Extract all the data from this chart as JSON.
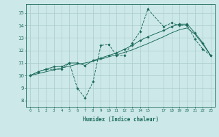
{
  "bg_color": "#cde8e8",
  "grid_color": "#aacccc",
  "line_color": "#1a6b5a",
  "xlabel": "Humidex (Indice chaleur)",
  "xlim": [
    -0.5,
    23.5
  ],
  "ylim": [
    7.5,
    15.7
  ],
  "yticks": [
    8,
    9,
    10,
    11,
    12,
    13,
    14,
    15
  ],
  "xticks": [
    0,
    1,
    2,
    3,
    4,
    5,
    6,
    7,
    8,
    9,
    10,
    11,
    12,
    13,
    14,
    15,
    17,
    18,
    19,
    20,
    21,
    22,
    23
  ],
  "xtick_labels": [
    "0",
    "1",
    "2",
    "3",
    "4",
    "5",
    "6",
    "7",
    "8",
    "9",
    "10",
    "11",
    "12",
    "13",
    "14",
    "15",
    "17",
    "18",
    "19",
    "20",
    "21",
    "22",
    "23"
  ],
  "line1_x": [
    0,
    1,
    2,
    3,
    4,
    5,
    6,
    7,
    8,
    9,
    10,
    11,
    12,
    13,
    14,
    15,
    17,
    18,
    19,
    20,
    21,
    22,
    23
  ],
  "line1_y": [
    10.0,
    10.3,
    10.5,
    10.5,
    10.5,
    11.0,
    9.0,
    8.2,
    9.5,
    12.4,
    12.5,
    11.6,
    11.6,
    12.6,
    13.5,
    15.3,
    13.9,
    14.2,
    14.0,
    14.0,
    12.9,
    12.1,
    11.6
  ],
  "line2_x": [
    0,
    1,
    2,
    3,
    4,
    5,
    6,
    7,
    8,
    9,
    10,
    11,
    12,
    13,
    14,
    15,
    17,
    18,
    19,
    20,
    21,
    22,
    23
  ],
  "line2_y": [
    10.0,
    10.3,
    10.5,
    10.7,
    10.7,
    11.0,
    11.0,
    10.8,
    11.2,
    11.4,
    11.6,
    11.8,
    12.1,
    12.4,
    12.8,
    13.1,
    13.6,
    13.9,
    14.1,
    14.1,
    13.4,
    12.6,
    11.6
  ],
  "line3_x": [
    0,
    1,
    2,
    3,
    4,
    5,
    6,
    7,
    8,
    9,
    10,
    11,
    12,
    13,
    14,
    15,
    17,
    18,
    19,
    20,
    21,
    22,
    23
  ],
  "line3_y": [
    10.0,
    10.15,
    10.3,
    10.45,
    10.6,
    10.75,
    10.9,
    11.0,
    11.15,
    11.3,
    11.5,
    11.65,
    11.85,
    12.05,
    12.3,
    12.55,
    13.1,
    13.4,
    13.65,
    13.8,
    13.3,
    12.5,
    11.6
  ]
}
